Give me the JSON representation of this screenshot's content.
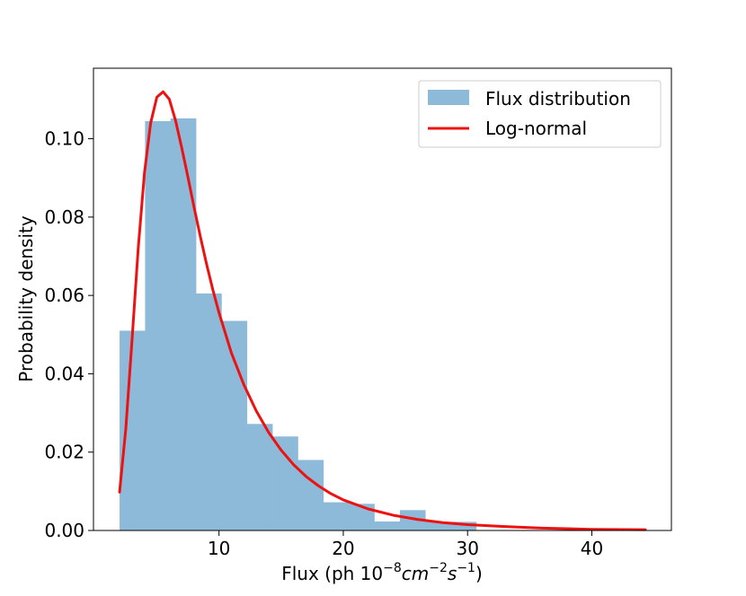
{
  "chart_data": {
    "type": "bar",
    "xlabel": "Flux (ph 10",
    "xlabel_exp1": "−8",
    "xlabel_cm": "cm",
    "xlabel_exp2": "−2",
    "xlabel_s": "s",
    "xlabel_exp3": "−1",
    "xlabel_close": ")",
    "ylabel": "Probability density",
    "xlim": [
      -0.1,
      46.4
    ],
    "ylim": [
      0,
      0.118
    ],
    "xticks": [
      10,
      20,
      30,
      40
    ],
    "xtick_labels": [
      "10",
      "20",
      "30",
      "40"
    ],
    "yticks": [
      0.0,
      0.02,
      0.04,
      0.06,
      0.08,
      0.1
    ],
    "ytick_labels": [
      "0.00",
      "0.02",
      "0.04",
      "0.06",
      "0.08",
      "0.10"
    ],
    "grid": false,
    "legend_position": "top-right",
    "histogram": {
      "name": "Flux distribution",
      "color": "#8dbad9",
      "bin_edges": [
        2.0,
        4.05,
        6.1,
        8.15,
        10.2,
        12.25,
        14.3,
        16.35,
        18.4,
        20.45,
        22.5,
        24.55,
        26.6,
        28.65,
        30.7,
        32.75,
        34.8,
        36.85,
        38.9,
        40.95,
        43.0,
        44.3
      ],
      "values": [
        0.051,
        0.1045,
        0.1052,
        0.0605,
        0.0535,
        0.0272,
        0.024,
        0.018,
        0.0072,
        0.0068,
        0.0023,
        0.0052,
        0.0022,
        0.0022,
        0.0,
        0.0,
        0.0,
        0.0,
        0.0004,
        0.0004,
        0.0004
      ]
    },
    "series": [
      {
        "name": "Log-normal",
        "type": "line",
        "color": "#ee1111",
        "x": [
          2.0,
          2.5,
          3.0,
          3.5,
          4.0,
          4.5,
          5.0,
          5.5,
          6.0,
          6.5,
          7.0,
          7.5,
          8.0,
          8.5,
          9.0,
          9.5,
          10.0,
          11.0,
          12.0,
          13.0,
          14.0,
          15.0,
          16.0,
          17.0,
          18.0,
          19.0,
          20.0,
          22.0,
          24.0,
          26.0,
          28.0,
          30.0,
          33.0,
          36.0,
          40.0,
          44.3
        ],
        "y": [
          0.0098,
          0.0259,
          0.0485,
          0.072,
          0.0912,
          0.104,
          0.1106,
          0.112,
          0.1101,
          0.1047,
          0.0977,
          0.0902,
          0.0824,
          0.075,
          0.068,
          0.0615,
          0.0556,
          0.0453,
          0.0372,
          0.0305,
          0.025,
          0.0205,
          0.0168,
          0.0138,
          0.0114,
          0.0094,
          0.0078,
          0.0055,
          0.0039,
          0.0028,
          0.002,
          0.0015,
          0.001,
          0.0006,
          0.0003,
          0.0002
        ]
      }
    ]
  }
}
